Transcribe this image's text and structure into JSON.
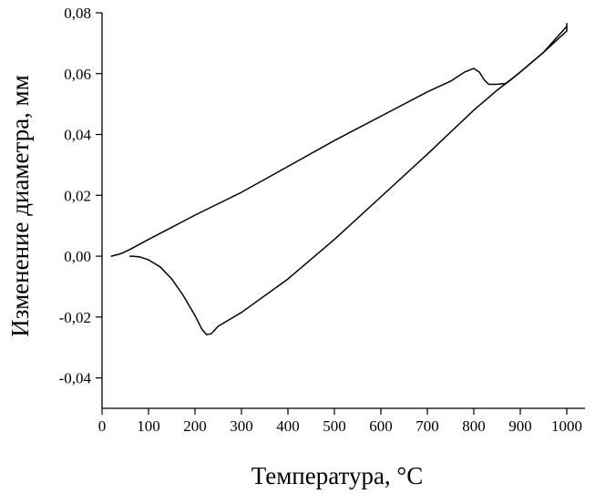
{
  "chart_data": {
    "type": "line",
    "title": "",
    "xlabel": "Температура, °C",
    "ylabel": "Изменение диаметра, мм",
    "xlim": [
      0,
      1000
    ],
    "ylim": [
      -0.05,
      0.08
    ],
    "xticks": [
      {
        "value": 0,
        "label": "0"
      },
      {
        "value": 100,
        "label": "100"
      },
      {
        "value": 200,
        "label": "200"
      },
      {
        "value": 300,
        "label": "300"
      },
      {
        "value": 400,
        "label": "400"
      },
      {
        "value": 500,
        "label": "500"
      },
      {
        "value": 600,
        "label": "600"
      },
      {
        "value": 700,
        "label": "700"
      },
      {
        "value": 800,
        "label": "800"
      },
      {
        "value": 900,
        "label": "900"
      },
      {
        "value": 1000,
        "label": "1000"
      }
    ],
    "yticks": [
      {
        "value": 0.08,
        "label": "0,08"
      },
      {
        "value": 0.06,
        "label": "0,06"
      },
      {
        "value": 0.04,
        "label": "0,04"
      },
      {
        "value": 0.02,
        "label": "0,02"
      },
      {
        "value": 0.0,
        "label": "0,00"
      },
      {
        "value": -0.02,
        "label": "-0,02"
      },
      {
        "value": -0.04,
        "label": "-0,04"
      }
    ],
    "grid": false,
    "legend": "none",
    "series": [
      {
        "color": "#000000",
        "points": [
          [
            20,
            0.0
          ],
          [
            40,
            0.0008
          ],
          [
            60,
            0.0022
          ],
          [
            100,
            0.0055
          ],
          [
            150,
            0.0095
          ],
          [
            200,
            0.0135
          ],
          [
            300,
            0.021
          ],
          [
            400,
            0.0295
          ],
          [
            500,
            0.038
          ],
          [
            600,
            0.046
          ],
          [
            700,
            0.054
          ],
          [
            750,
            0.0575
          ],
          [
            780,
            0.0605
          ],
          [
            800,
            0.0617
          ],
          [
            812,
            0.0605
          ],
          [
            822,
            0.058
          ],
          [
            832,
            0.0565
          ],
          [
            850,
            0.0565
          ],
          [
            870,
            0.0568
          ],
          [
            900,
            0.0605
          ],
          [
            950,
            0.067
          ],
          [
            1000,
            0.0755
          ]
        ]
      },
      {
        "color": "#000000",
        "points": [
          [
            1000,
            0.0765
          ],
          [
            1000,
            0.074
          ],
          [
            950,
            0.067
          ],
          [
            900,
            0.0605
          ],
          [
            850,
            0.0545
          ],
          [
            800,
            0.048
          ],
          [
            700,
            0.0335
          ],
          [
            600,
            0.0195
          ],
          [
            500,
            0.0055
          ],
          [
            400,
            -0.0075
          ],
          [
            300,
            -0.0185
          ],
          [
            250,
            -0.023
          ],
          [
            235,
            -0.0255
          ],
          [
            225,
            -0.0258
          ],
          [
            215,
            -0.024
          ],
          [
            200,
            -0.0195
          ],
          [
            175,
            -0.013
          ],
          [
            150,
            -0.0075
          ],
          [
            125,
            -0.0035
          ],
          [
            100,
            -0.0012
          ],
          [
            80,
            -0.0002
          ],
          [
            65,
            0.0
          ],
          [
            60,
            0.0
          ]
        ]
      }
    ]
  }
}
